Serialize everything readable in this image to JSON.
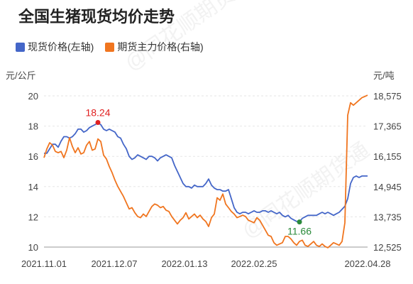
{
  "title": "全国生猪现货均价走势",
  "watermark": "@同花顺期货通",
  "chart_data": {
    "type": "line",
    "title": "全国生猪现货均价走势",
    "left_axis": {
      "unit": "元/公斤",
      "ticks": [
        10,
        12,
        14,
        16,
        18,
        20
      ],
      "range": [
        10,
        20
      ]
    },
    "right_axis": {
      "unit": "元/吨",
      "ticks": [
        "12,525",
        "13,735",
        "14,945",
        "16,155",
        "17,365",
        "18,575"
      ],
      "range": [
        12525,
        18575
      ]
    },
    "x_ticks": [
      "2021.11.01",
      "2021.12.07",
      "2022.01.13",
      "2022.02.25",
      "2022.04.28"
    ],
    "grid": true,
    "legend_position": "top-left",
    "series": [
      {
        "name": "现货价格(左轴)",
        "axis": "left",
        "color": "#4466c8",
        "values": [
          16.2,
          16.2,
          16.5,
          16.8,
          16.8,
          16.6,
          17.0,
          17.3,
          17.3,
          17.2,
          17.3,
          17.5,
          17.8,
          17.8,
          17.6,
          17.7,
          17.9,
          18.0,
          18.1,
          18.2,
          18.1,
          17.8,
          17.7,
          17.8,
          17.7,
          17.6,
          17.3,
          17.2,
          16.8,
          16.5,
          16.0,
          15.8,
          15.9,
          16.1,
          16.0,
          15.9,
          15.8,
          16.0,
          16.0,
          15.9,
          15.7,
          15.9,
          16.0,
          16.1,
          16.0,
          15.9,
          15.4,
          15.0,
          14.6,
          14.2,
          14.0,
          14.0,
          13.9,
          14.1,
          14.0,
          14.0,
          14.0,
          14.2,
          14.5,
          14.1,
          13.9,
          13.8,
          13.8,
          13.7,
          13.7,
          13.8,
          13.2,
          12.6,
          12.3,
          12.2,
          12.3,
          12.3,
          12.2,
          12.3,
          12.4,
          12.3,
          12.3,
          12.4,
          12.4,
          12.3,
          12.4,
          12.3,
          12.2,
          12.3,
          12.1,
          12.0,
          12.1,
          11.9,
          11.8,
          11.7,
          11.66,
          11.9,
          12.0,
          12.1,
          12.1,
          12.1,
          12.1,
          12.2,
          12.3,
          12.2,
          12.3,
          12.2,
          12.1,
          12.2,
          12.3,
          12.5,
          12.7,
          13.2,
          14.2,
          14.6,
          14.7,
          14.6,
          14.7,
          14.7,
          14.7
        ]
      },
      {
        "name": "期货主力价格(右轴)",
        "axis": "right",
        "color": "#f0751f",
        "values": [
          16100,
          16450,
          16700,
          16600,
          16350,
          16300,
          16350,
          16100,
          16400,
          16900,
          16550,
          16300,
          16500,
          16250,
          16300,
          16600,
          16750,
          16400,
          16450,
          16850,
          16750,
          16200,
          16050,
          15750,
          15500,
          15200,
          14950,
          14750,
          14550,
          14300,
          14050,
          14100,
          13900,
          13750,
          13700,
          13850,
          13750,
          13950,
          14150,
          14250,
          14200,
          14100,
          14150,
          14000,
          13950,
          13750,
          13600,
          13450,
          13600,
          13700,
          13900,
          13650,
          13750,
          13850,
          13700,
          13800,
          13650,
          13550,
          13350,
          13700,
          13850,
          14500,
          14400,
          14650,
          14250,
          14100,
          13950,
          13850,
          13700,
          13750,
          13800,
          13750,
          13600,
          13550,
          13500,
          13700,
          13600,
          13400,
          13200,
          13000,
          12950,
          12700,
          12600,
          12650,
          12700,
          12950,
          12950,
          12850,
          12700,
          12600,
          12750,
          12800,
          12600,
          12550,
          12650,
          12750,
          12600,
          12550,
          12650,
          12550,
          12500,
          12600,
          12700,
          12650,
          12600,
          12750,
          13500,
          17800,
          18300,
          18200,
          18300,
          18400,
          18500,
          18550,
          18600
        ]
      }
    ],
    "annotations": [
      {
        "series": "现货价格(左轴)",
        "label": "18.24",
        "value": 18.24,
        "kind": "max",
        "color": "#e02020"
      },
      {
        "series": "现货价格(左轴)",
        "label": "11.66",
        "value": 11.66,
        "kind": "min",
        "color": "#2a8a3a"
      }
    ]
  }
}
